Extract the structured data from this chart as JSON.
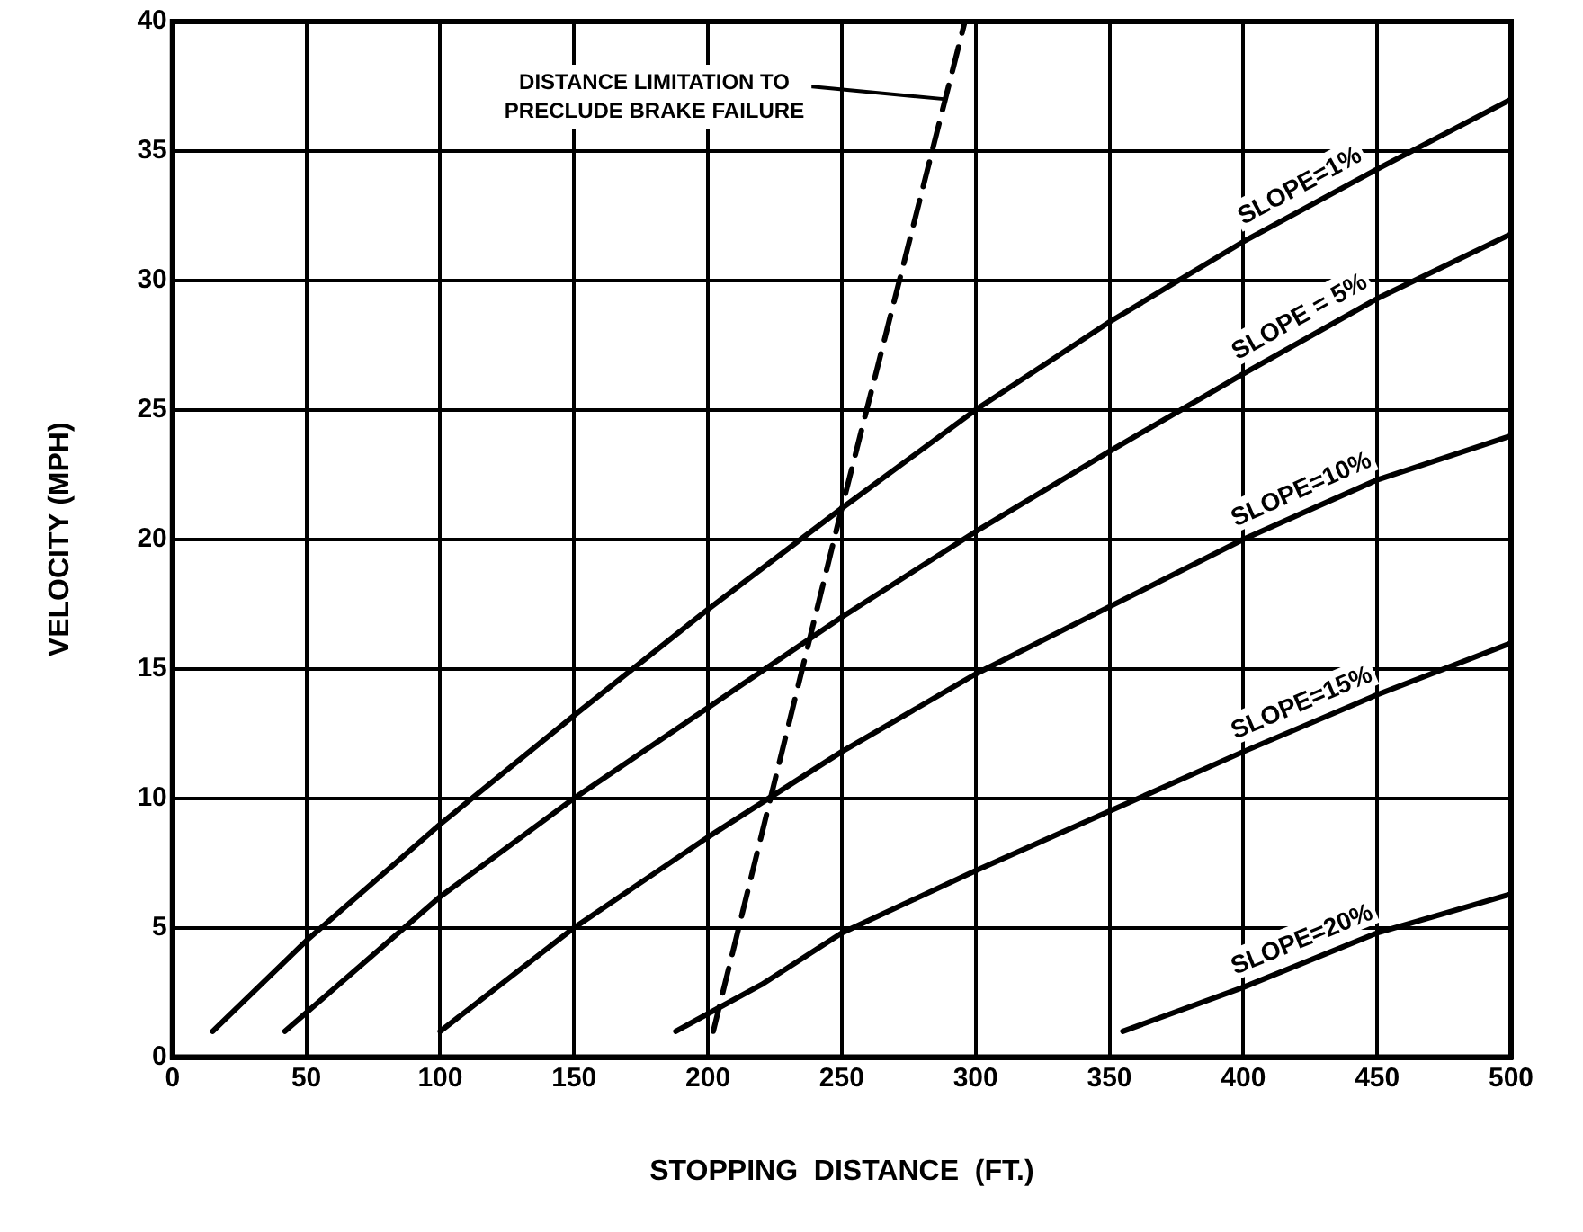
{
  "chart_data": {
    "type": "line",
    "xlabel": "STOPPING  DISTANCE  (FT.)",
    "ylabel": "VELOCITY (MPH)",
    "xlim": [
      0,
      500
    ],
    "xticks": [
      0,
      50,
      100,
      150,
      200,
      250,
      300,
      350,
      400,
      450,
      500
    ],
    "ylim": [
      0,
      40
    ],
    "yticks": [
      0,
      5,
      10,
      15,
      20,
      25,
      30,
      35,
      40
    ],
    "grid": true,
    "legend": false,
    "marker": "none",
    "series": [
      {
        "name": "SLOPE=1%",
        "color": "#000000",
        "line_style": "solid",
        "x": [
          15,
          50,
          100,
          150,
          200,
          250,
          300,
          350,
          400,
          450,
          500
        ],
        "values": [
          1,
          4.5,
          9,
          13.2,
          17.3,
          21.2,
          25,
          28.4,
          31.5,
          34.3,
          37
        ]
      },
      {
        "name": "SLOPE = 5%",
        "color": "#000000",
        "line_style": "solid",
        "x": [
          42,
          100,
          150,
          200,
          250,
          300,
          350,
          400,
          450,
          500
        ],
        "values": [
          1,
          6.2,
          10,
          13.5,
          17,
          20.3,
          23.4,
          26.4,
          29.3,
          31.8
        ]
      },
      {
        "name": "SLOPE=10%",
        "color": "#000000",
        "line_style": "solid",
        "x": [
          100,
          150,
          200,
          250,
          300,
          350,
          400,
          450,
          500
        ],
        "values": [
          1,
          5,
          8.5,
          11.8,
          14.8,
          17.4,
          20,
          22.3,
          24
        ]
      },
      {
        "name": "SLOPE=15%",
        "color": "#000000",
        "line_style": "solid",
        "x": [
          188,
          220,
          250,
          300,
          350,
          400,
          450,
          500
        ],
        "values": [
          1,
          2.8,
          4.8,
          7.2,
          9.5,
          11.8,
          14,
          16
        ]
      },
      {
        "name": "SLOPE=20%",
        "color": "#000000",
        "line_style": "solid",
        "x": [
          355,
          400,
          450,
          500
        ],
        "values": [
          1,
          2.7,
          4.8,
          6.3
        ]
      },
      {
        "color": "#000000",
        "line_style": "dashed",
        "x": [
          202,
          250,
          296
        ],
        "values": [
          1,
          21.2,
          40
        ]
      }
    ],
    "annotations": [
      {
        "text": "DISTANCE LIMITATION TO\nPRECLUDE BRAKE FAILURE",
        "x": 289,
        "y": 37
      }
    ]
  }
}
